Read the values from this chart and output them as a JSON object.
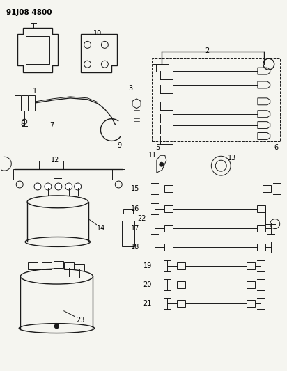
{
  "title": "91J08 4800",
  "bg_color": "#f5f5f0",
  "line_color": "#1a1a1a",
  "label_color": "#000000",
  "fig_width": 4.12,
  "fig_height": 5.33,
  "dpi": 100
}
